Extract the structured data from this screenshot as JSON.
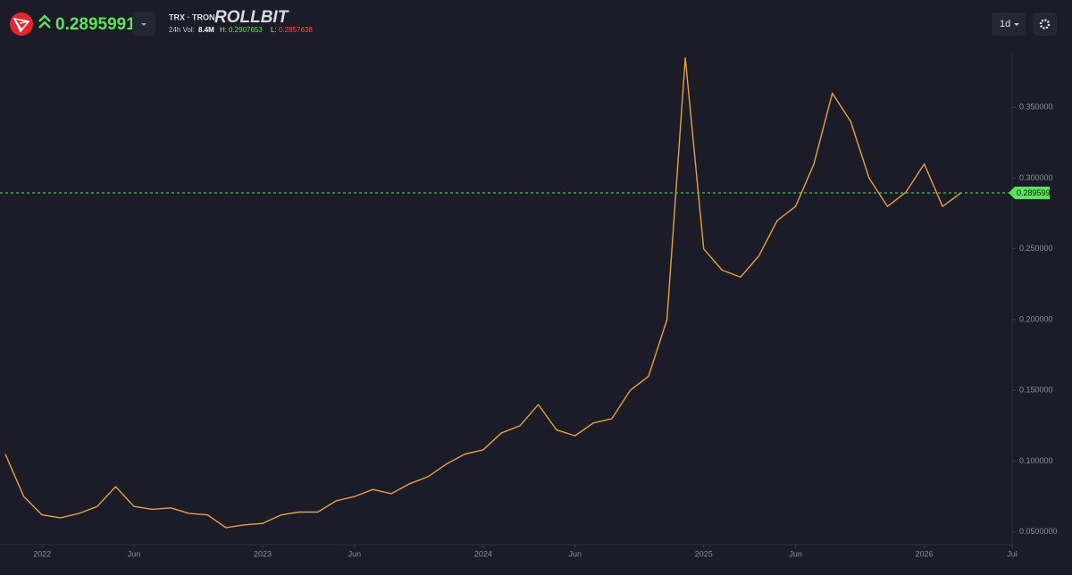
{
  "header": {
    "price": "0.2895991",
    "pair": "TRX · TRON",
    "brand": "ROLLBIT",
    "vol_label": "24h Vol:",
    "vol": "8.4M",
    "high_label": "H:",
    "high": "0.2907653",
    "low_label": "L:",
    "low": "0.2857638",
    "interval": "1d"
  },
  "chart_data": {
    "type": "line",
    "x": [
      "2021-11",
      "2021-12",
      "2022-01",
      "2022-02",
      "2022-03",
      "2022-04",
      "2022-05",
      "2022-06",
      "2022-07",
      "2022-08",
      "2022-09",
      "2022-10",
      "2022-11",
      "2022-12",
      "2023-01",
      "2023-02",
      "2023-03",
      "2023-04",
      "2023-05",
      "2023-06",
      "2023-07",
      "2023-08",
      "2023-09",
      "2023-10",
      "2023-11",
      "2023-12",
      "2024-01",
      "2024-02",
      "2024-03",
      "2024-04",
      "2024-05",
      "2024-06",
      "2024-07",
      "2024-08",
      "2024-09",
      "2024-10",
      "2024-11",
      "2024-12",
      "2025-01",
      "2025-02",
      "2025-03",
      "2025-04",
      "2025-05",
      "2025-06",
      "2025-07",
      "2025-08",
      "2025-09",
      "2025-10",
      "2025-11",
      "2025-12",
      "2026-01",
      "2026-02",
      "2026-03"
    ],
    "values": [
      0.105,
      0.075,
      0.062,
      0.06,
      0.063,
      0.068,
      0.082,
      0.068,
      0.066,
      0.067,
      0.063,
      0.062,
      0.053,
      0.055,
      0.056,
      0.062,
      0.064,
      0.064,
      0.072,
      0.075,
      0.08,
      0.077,
      0.084,
      0.089,
      0.098,
      0.105,
      0.108,
      0.12,
      0.125,
      0.14,
      0.122,
      0.118,
      0.127,
      0.13,
      0.15,
      0.16,
      0.2,
      0.385,
      0.25,
      0.235,
      0.23,
      0.245,
      0.27,
      0.28,
      0.31,
      0.36,
      0.34,
      0.3,
      0.28,
      0.29,
      0.31,
      0.28,
      0.2896
    ],
    "color": "#e6a13c",
    "xlim": [
      "2021-11",
      "2026-07"
    ],
    "xticks": [
      {
        "value": "2022-01",
        "label": "2022"
      },
      {
        "value": "2022-06",
        "label": "Jun"
      },
      {
        "value": "2023-01",
        "label": "2023"
      },
      {
        "value": "2023-06",
        "label": "Jun"
      },
      {
        "value": "2024-01",
        "label": "2024"
      },
      {
        "value": "2024-06",
        "label": "Jun"
      },
      {
        "value": "2025-01",
        "label": "2025"
      },
      {
        "value": "2025-06",
        "label": "Jun"
      },
      {
        "value": "2026-01",
        "label": "2026"
      },
      {
        "value": "2026-07",
        "label": "Jul"
      }
    ],
    "ylim": [
      0.041,
      0.388
    ],
    "yticks": [
      {
        "value": 0.05,
        "label": "0.0500000"
      },
      {
        "value": 0.1,
        "label": "0.100000"
      },
      {
        "value": 0.15,
        "label": "0.150000"
      },
      {
        "value": 0.2,
        "label": "0.200000"
      },
      {
        "value": 0.25,
        "label": "0.250000"
      },
      {
        "value": 0.3,
        "label": "0.300000"
      },
      {
        "value": 0.35,
        "label": "0.350000"
      }
    ],
    "last_price": 0.289599,
    "last_price_color": "#5be35b"
  }
}
